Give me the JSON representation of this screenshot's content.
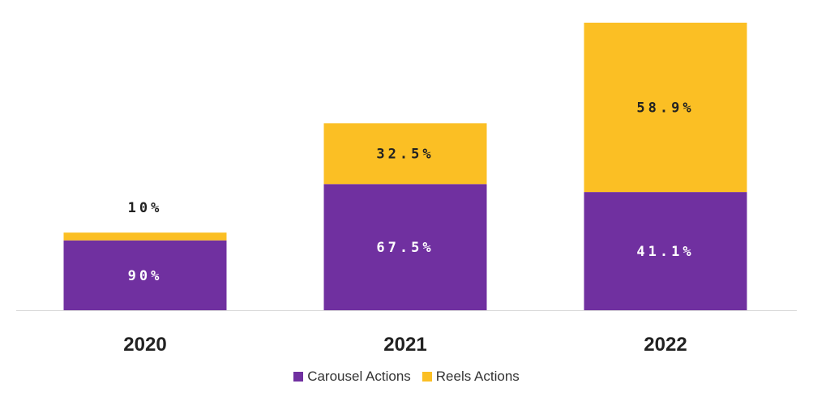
{
  "chart_data": {
    "type": "bar",
    "stacked": true,
    "categories": [
      "2020",
      "2021",
      "2022"
    ],
    "series": [
      {
        "name": "Carousel Actions",
        "color": "#7030a0",
        "values": [
          90,
          67.5,
          41.1
        ],
        "labels": [
          "90%",
          "67.5%",
          "41.1%"
        ]
      },
      {
        "name": "Reels Actions",
        "color": "#fbbf24",
        "values": [
          10,
          32.5,
          58.9
        ],
        "labels": [
          "10%",
          "32.5%",
          "58.9%"
        ]
      }
    ],
    "relative_bar_totals": [
      0.27,
      0.65,
      1.0
    ],
    "grid": false,
    "legend_position": "bottom"
  }
}
